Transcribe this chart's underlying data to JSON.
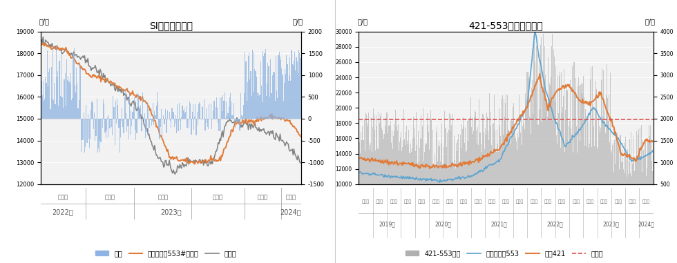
{
  "chart1": {
    "title": "SI主力基差走势",
    "ylabel_left": "元/吨",
    "ylabel_right": "元/吨",
    "ylim_left": [
      12000,
      19000
    ],
    "ylim_right": [
      -1500,
      2000
    ],
    "yticks_left": [
      12000,
      13000,
      14000,
      15000,
      16000,
      17000,
      18000,
      19000
    ],
    "yticks_right": [
      -1500,
      -1000,
      -500,
      0,
      500,
      1000,
      1500,
      2000
    ],
    "legend_labels": [
      "基差",
      "华东不通氧553#硒均价",
      "收盘价"
    ],
    "legend_colors": [
      "#8db4e2",
      "#e07b39",
      "#808080"
    ],
    "season_labels_1": [
      "第四季",
      "第一季",
      "第二季",
      "第三季",
      "第四季",
      "第一季"
    ],
    "year_labels_1": [
      "2022年",
      "2023年",
      "2024年"
    ],
    "bg_color": "#f2f2f2"
  },
  "chart2": {
    "title": "421-553价差价格走势",
    "ylabel_left": "元/吨",
    "ylabel_right": "元/吨",
    "ylim_left": [
      10000,
      30000
    ],
    "ylim_right": [
      500,
      4000
    ],
    "yticks_left": [
      10000,
      12000,
      14000,
      16000,
      18000,
      20000,
      22000,
      24000,
      26000,
      28000,
      30000
    ],
    "yticks_right": [
      500,
      1000,
      1500,
      2000,
      2500,
      3000,
      3500,
      4000
    ],
    "hline_value": 18500,
    "legend_labels": [
      "421-553价差",
      "华东不通氧553",
      "华东421",
      "升贴水"
    ],
    "legend_colors": [
      "#b0b0b0",
      "#5ba3d0",
      "#e07b39",
      "#e05050"
    ],
    "season_labels_2": [
      "第一季",
      "第二季",
      "第三季",
      "第四季"
    ],
    "year_labels_2": [
      "2019年",
      "2020年",
      "2021年",
      "2022年",
      "2023年",
      "2024年"
    ],
    "bg_color": "#f2f2f2"
  },
  "fig_bg": "#ffffff"
}
